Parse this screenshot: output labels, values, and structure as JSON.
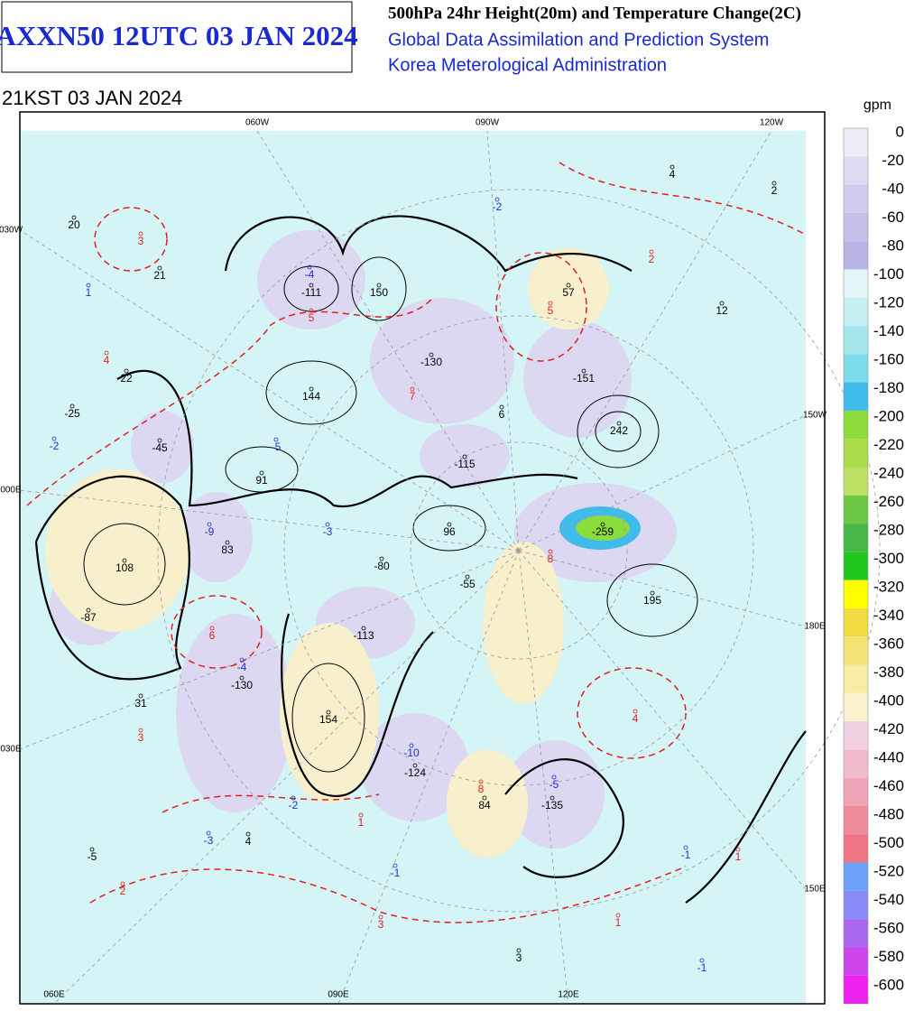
{
  "header": {
    "code": "AXXN50 12UTC 03 JAN 2024",
    "title": "500hPa 24hr Height(20m) and Temperature Change(2C)",
    "system": "Global Data Assimilation and Prediction System",
    "agency": "Korea Meterological Administration"
  },
  "valid_time": "21KST 03 JAN 2024",
  "grid_labels": [
    "060W",
    "090W",
    "120W",
    "030W",
    "000E",
    "030E",
    "060E",
    "090E",
    "120E",
    "150W",
    "180E",
    "150E"
  ],
  "height_centers": [
    -111,
    150,
    -130,
    144,
    91,
    -45,
    -25,
    22,
    21,
    20,
    108,
    -87,
    83,
    -80,
    96,
    -115,
    -55,
    -113,
    -130,
    31,
    154,
    -124,
    84,
    -135,
    57,
    -151,
    242,
    -259,
    195,
    12,
    4,
    2,
    -5,
    4,
    6,
    3
  ],
  "temp_cold": [
    -4,
    -2,
    1,
    -5,
    -2,
    -9,
    -3,
    -4,
    -10,
    -5,
    -2,
    -3,
    -1,
    -1,
    -1
  ],
  "temp_warm": [
    3,
    4,
    5,
    5,
    2,
    6,
    3,
    4,
    1,
    2,
    3,
    1,
    1,
    8,
    8,
    7
  ],
  "colorbar": {
    "unit": "gpm",
    "labels": [
      0,
      -20,
      -40,
      -60,
      -80,
      -100,
      -120,
      -140,
      -160,
      -180,
      -200,
      -220,
      -240,
      -260,
      -280,
      -300,
      -320,
      -340,
      -360,
      -380,
      -400,
      -420,
      -440,
      -460,
      -480,
      -500,
      -520,
      -540,
      -560,
      -580,
      -600
    ],
    "colors": [
      "#eeeaf6",
      "#dedaf2",
      "#d0ccee",
      "#c4c0ea",
      "#b8b4e6",
      "#e4f6f8",
      "#c4f0f2",
      "#a4e8ee",
      "#7cdcec",
      "#40bcec",
      "#8cdc3c",
      "#a8dc48",
      "#bce064",
      "#6cc844",
      "#48b848",
      "#20c820",
      "#ffff00",
      "#f0dc40",
      "#f2e474",
      "#f6eca4",
      "#faf2cc",
      "#f2d2e2",
      "#f0bccc",
      "#f0a4b8",
      "#ee8c9c",
      "#ee7484",
      "#6ca2f8",
      "#8a8af6",
      "#aa68f0",
      "#cc46ec",
      "#ee22ee"
    ]
  }
}
